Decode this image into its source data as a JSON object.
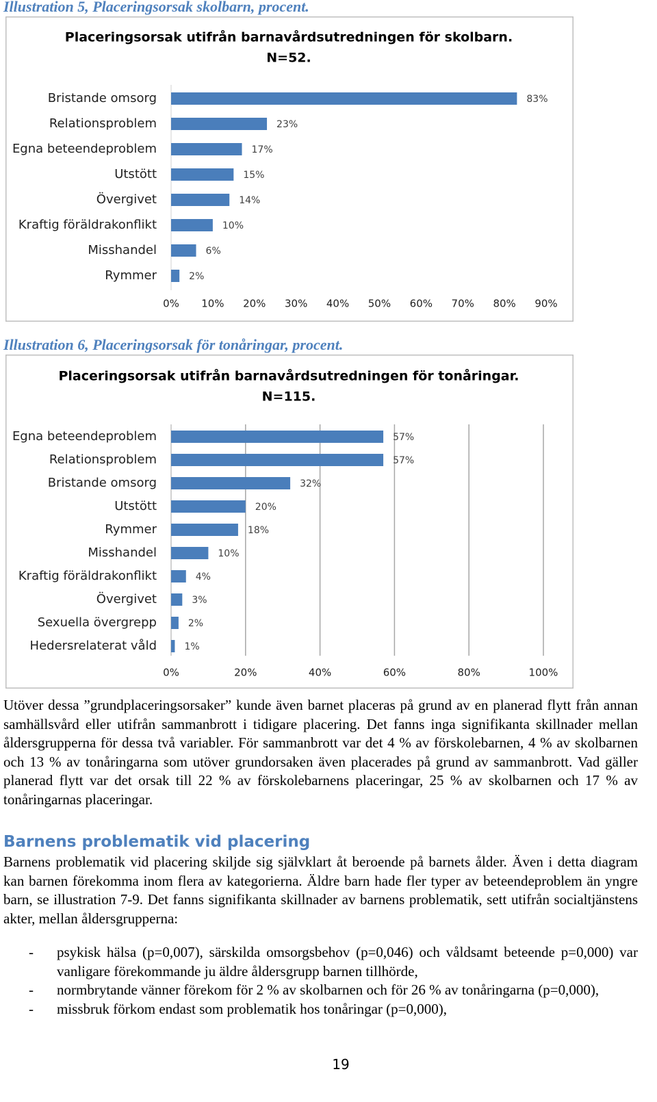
{
  "chart_data": [
    {
      "type": "bar",
      "orientation": "horizontal",
      "caption": "Illustration 5, Placeringsorsak skolbarn, procent.",
      "title": "Placeringsorsak utifrån barnavårdsutredningen för skolbarn.",
      "subtitle": "N=52.",
      "categories": [
        "Bristande omsorg",
        "Relationsproblem",
        "Egna beteendeproblem",
        "Utstött",
        "Övergivet",
        "Kraftig föräldrakonflikt",
        "Misshandel",
        "Rymmer"
      ],
      "values": [
        83,
        23,
        17,
        15,
        14,
        10,
        6,
        2
      ],
      "value_labels": [
        "83%",
        "23%",
        "17%",
        "15%",
        "14%",
        "10%",
        "6%",
        "2%"
      ],
      "color": "#4a7ebb",
      "xlim": [
        0,
        90
      ],
      "xticks": [
        {
          "value": 0,
          "label": "0%"
        },
        {
          "value": 10,
          "label": "10%"
        },
        {
          "value": 20,
          "label": "20%"
        },
        {
          "value": 30,
          "label": "30%"
        },
        {
          "value": 40,
          "label": "40%"
        },
        {
          "value": 50,
          "label": "50%"
        },
        {
          "value": 60,
          "label": "60%"
        },
        {
          "value": 70,
          "label": "70%"
        },
        {
          "value": 80,
          "label": "80%"
        },
        {
          "value": 90,
          "label": "90%"
        }
      ],
      "grid": false
    },
    {
      "type": "bar",
      "orientation": "horizontal",
      "caption": "Illustration 6, Placeringsorsak för tonåringar, procent.",
      "title": "Placeringsorsak utifrån barnavårdsutredningen för tonåringar.",
      "subtitle": "N=115.",
      "categories": [
        "Egna beteendeproblem",
        "Relationsproblem",
        "Bristande omsorg",
        "Utstött",
        "Rymmer",
        "Misshandel",
        "Kraftig föräldrakonflikt",
        "Övergivet",
        "Sexuella övergrepp",
        "Hedersrelaterat våld"
      ],
      "values": [
        57,
        57,
        32,
        20,
        18,
        10,
        4,
        3,
        2,
        1
      ],
      "value_labels": [
        "57%",
        "57%",
        "32%",
        "20%",
        "18%",
        "10%",
        "4%",
        "3%",
        "2%",
        "1%"
      ],
      "color": "#4a7ebb",
      "xlim": [
        0,
        100
      ],
      "xticks": [
        {
          "value": 0,
          "label": "0%"
        },
        {
          "value": 20,
          "label": "20%"
        },
        {
          "value": 40,
          "label": "40%"
        },
        {
          "value": 60,
          "label": "60%"
        },
        {
          "value": 80,
          "label": "80%"
        },
        {
          "value": 100,
          "label": "100%"
        }
      ],
      "grid": true
    }
  ],
  "paragraph_1": "Utöver dessa ”grundplaceringsorsaker” kunde även barnet placeras på grund av en planerad flytt från annan samhällsvård eller utifrån sammanbrott i tidigare placering. Det fanns inga signifikanta skillnader mellan åldersgrupperna för dessa två variabler. För sammanbrott var det 4 % av förskolebarnen, 4 % av skolbarnen och 13 % av tonåringarna som utöver grundorsaken även placerades på grund av sammanbrott. Vad gäller planerad flytt var det orsak till 22 % av förskolebarnens placeringar, 25 % av skolbarnen och 17 % av tonåringarnas placeringar.",
  "heading": "Barnens problematik vid placering",
  "paragraph_2": "Barnens problematik vid placering skiljde sig självklart åt beroende på barnets ålder. Även i detta diagram kan barnen förekomma inom flera av kategorierna. Äldre barn hade fler typer av beteendeproblem än yngre barn, se illustration 7-9. Det fanns signifikanta skillnader av barnens problematik, sett utifrån socialtjänstens akter, mellan åldersgrupperna:",
  "list": [
    "psykisk hälsa (p=0,007), särskilda omsorgsbehov (p=0,046) och våldsamt beteende p=0,000) var vanligare förekommande ju äldre åldersgrupp barnen tillhörde,",
    "normbrytande vänner förekom för 2 % av skolbarnen och för 26 % av tonåringarna (p=0,000),",
    "missbruk förkom endast som problematik hos tonåringar (p=0,000),"
  ],
  "page_number": "19"
}
